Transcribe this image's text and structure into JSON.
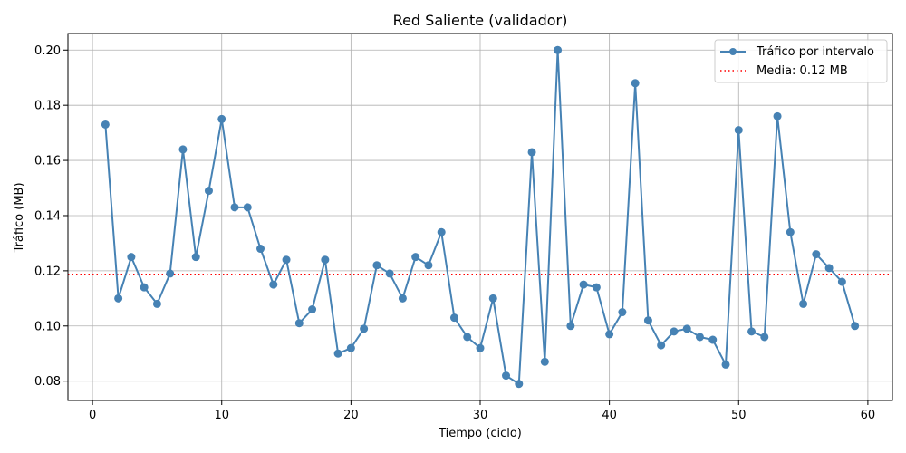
{
  "chart_data": {
    "type": "line",
    "title": "Red Saliente (validador)",
    "xlabel": "Tiempo (ciclo)",
    "ylabel": "Tráfico (MB)",
    "xlim": [
      -1.9,
      61.9
    ],
    "ylim": [
      0.073,
      0.206
    ],
    "xticks": [
      0,
      10,
      20,
      30,
      40,
      50,
      60
    ],
    "yticks": [
      0.08,
      0.1,
      0.12,
      0.14,
      0.16,
      0.18,
      0.2
    ],
    "grid": true,
    "legend_position": "top-right",
    "series": [
      {
        "name": "Tráfico por intervalo",
        "color": "#4682b4",
        "marker": "circle",
        "x": [
          1,
          2,
          3,
          4,
          5,
          6,
          7,
          8,
          9,
          10,
          11,
          12,
          13,
          14,
          15,
          16,
          17,
          18,
          19,
          20,
          21,
          22,
          23,
          24,
          25,
          26,
          27,
          28,
          29,
          30,
          31,
          32,
          33,
          34,
          35,
          36,
          37,
          38,
          39,
          40,
          41,
          42,
          43,
          44,
          45,
          46,
          47,
          48,
          49,
          50,
          51,
          52,
          53,
          54,
          55,
          56,
          57,
          58,
          59
        ],
        "y": [
          0.173,
          0.11,
          0.125,
          0.114,
          0.108,
          0.119,
          0.164,
          0.125,
          0.149,
          0.175,
          0.143,
          0.143,
          0.128,
          0.115,
          0.124,
          0.101,
          0.106,
          0.124,
          0.09,
          0.092,
          0.099,
          0.122,
          0.119,
          0.11,
          0.125,
          0.122,
          0.134,
          0.103,
          0.096,
          0.092,
          0.11,
          0.082,
          0.079,
          0.163,
          0.087,
          0.2,
          0.1,
          0.115,
          0.114,
          0.097,
          0.105,
          0.188,
          0.102,
          0.093,
          0.098,
          0.099,
          0.096,
          0.095,
          0.086,
          0.171,
          0.098,
          0.096,
          0.176,
          0.134,
          0.108,
          0.126,
          0.121,
          0.116,
          0.1
        ]
      }
    ],
    "mean_line": {
      "label": "Media: 0.12 MB",
      "value": 0.1187,
      "color": "#ff0000",
      "style": "dotted"
    }
  }
}
